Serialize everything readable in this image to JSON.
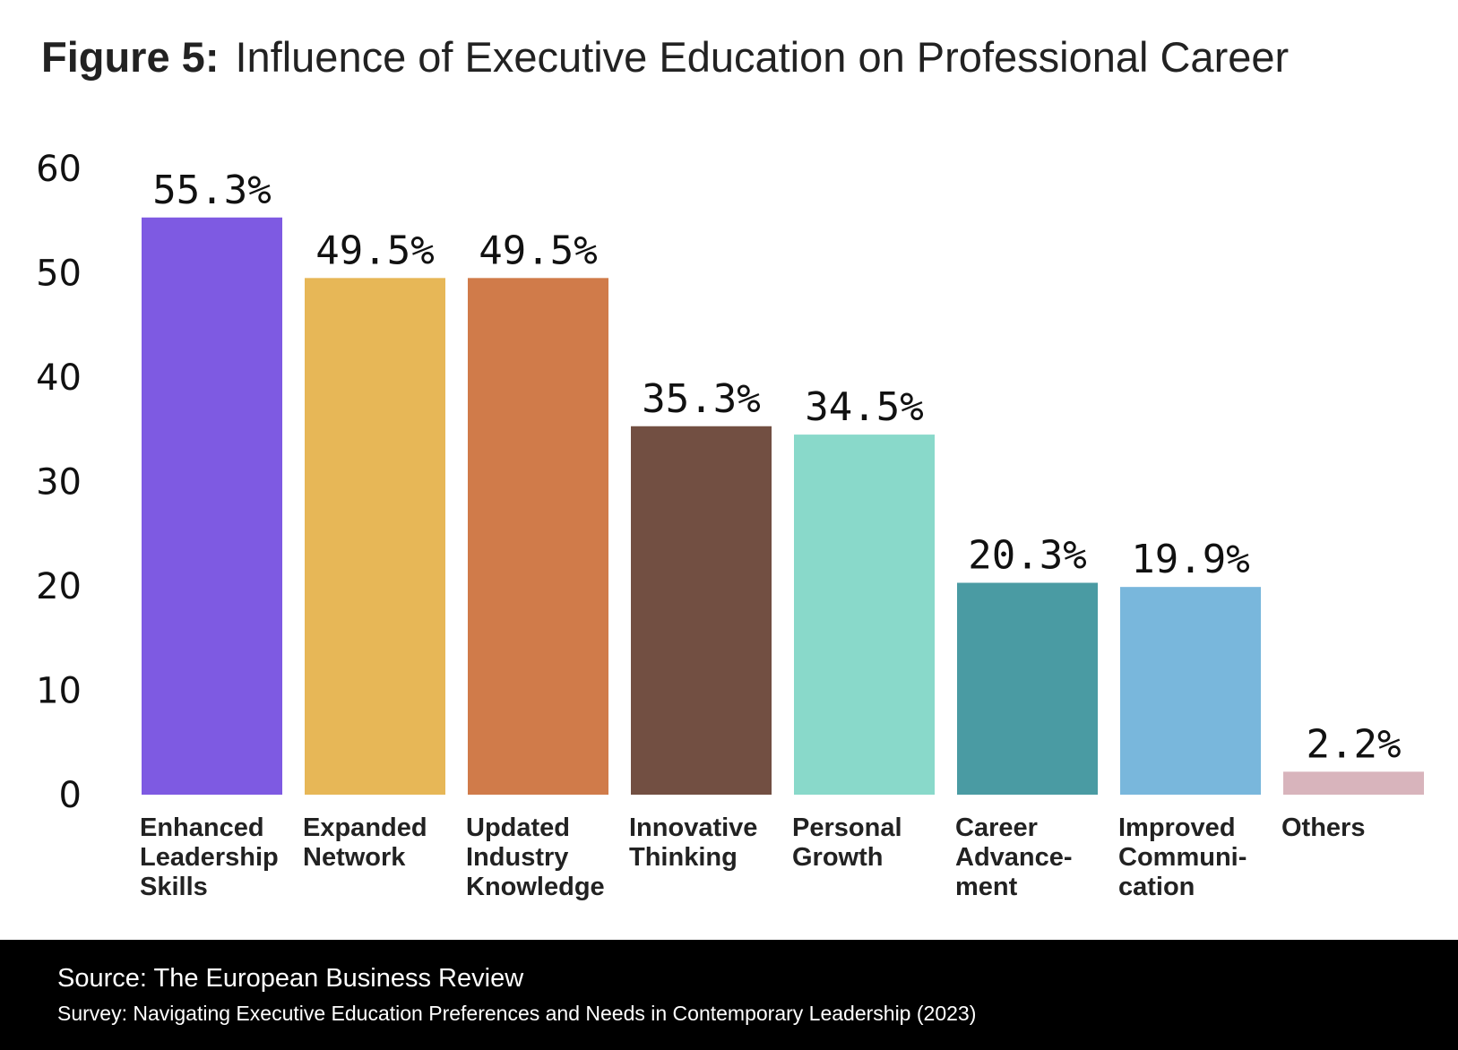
{
  "chart_data": {
    "type": "bar",
    "title_prefix": "Figure 5:",
    "title": "Influence of Executive Education on Professional Career",
    "categories": [
      "Enhanced\nLeadership\nSkills",
      "Expanded\nNetwork",
      "Updated\nIndustry\nKnowledge",
      "Innovative\nThinking",
      "Personal\nGrowth",
      "Career\nAdvance-\nment",
      "Improved\nCommuni-\ncation",
      "Others"
    ],
    "values": [
      55.3,
      49.5,
      49.5,
      35.3,
      34.5,
      20.3,
      19.9,
      2.2
    ],
    "data_labels": [
      "55.3%",
      "49.5%",
      "49.5%",
      "35.3%",
      "34.5%",
      "20.3%",
      "19.9%",
      "2.2%"
    ],
    "colors": [
      "#7E5AE2",
      "#E7B757",
      "#D07B4A",
      "#724F42",
      "#89D9CA",
      "#4A9BA3",
      "#79B7DC",
      "#D8B4BC"
    ],
    "yticks": [
      0,
      10,
      20,
      30,
      40,
      50,
      60
    ],
    "ylim": [
      0,
      60
    ],
    "xlabel": "",
    "ylabel": "",
    "grid": false,
    "legend": "none"
  },
  "footer": {
    "source": "Source: The European Business Review",
    "survey": "Survey: Navigating Executive Education Preferences and Needs in Contemporary Leadership (2023)"
  }
}
